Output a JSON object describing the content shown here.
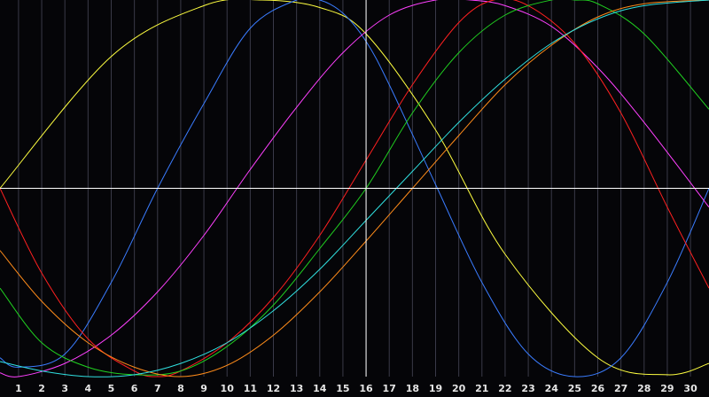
{
  "chart_data": {
    "type": "line",
    "x_ticks": [
      "1",
      "2",
      "3",
      "4",
      "5",
      "6",
      "7",
      "8",
      "9",
      "10",
      "11",
      "12",
      "13",
      "14",
      "15",
      "16",
      "17",
      "18",
      "19",
      "20",
      "21",
      "22",
      "23",
      "24",
      "25",
      "26",
      "27",
      "28",
      "29",
      "30"
    ],
    "xlim": [
      0.2,
      30.8
    ],
    "ylim": [
      -1,
      1
    ],
    "grid": "vertical",
    "crosshair": {
      "x": 16,
      "y": 0
    },
    "colors": {
      "background": "#050508",
      "grid": "#3a3a48",
      "crosshair": "#ffffff",
      "tick_text": "#e6e6e6"
    },
    "series": [
      {
        "color": "#ffff40",
        "x": [
          0.2,
          5,
          9,
          11.5,
          14,
          16,
          19,
          22,
          26,
          29,
          30.8
        ],
        "y": [
          0.0,
          0.7,
          0.97,
          1.0,
          0.96,
          0.82,
          0.31,
          -0.35,
          -0.9,
          -0.99,
          -0.93
        ]
      },
      {
        "color": "#3a7cff",
        "x": [
          0.2,
          1,
          3,
          5,
          7,
          9,
          11,
          13,
          14,
          15,
          16,
          17,
          19,
          21,
          23,
          25,
          27,
          29,
          30.8
        ],
        "y": [
          -0.9,
          -0.95,
          -0.88,
          -0.5,
          0.0,
          0.45,
          0.85,
          1.0,
          1.0,
          0.93,
          0.78,
          0.55,
          0.02,
          -0.5,
          -0.88,
          -1.0,
          -0.9,
          -0.5,
          0.0
        ]
      },
      {
        "color": "#ff40ff",
        "x": [
          0.2,
          1,
          3,
          5,
          7,
          9,
          11,
          13,
          15,
          17,
          19,
          20.5,
          22,
          24,
          26,
          28,
          30.8
        ],
        "y": [
          -0.98,
          -1.0,
          -0.93,
          -0.78,
          -0.55,
          -0.25,
          0.1,
          0.43,
          0.72,
          0.92,
          1.0,
          1.0,
          0.97,
          0.86,
          0.64,
          0.35,
          -0.1
        ]
      },
      {
        "color": "#ff2020",
        "x": [
          0.2,
          2,
          4,
          6,
          7,
          8,
          10,
          12,
          14,
          16,
          18,
          20,
          21.5,
          23,
          25,
          27,
          29,
          30.8
        ],
        "y": [
          0.0,
          -0.45,
          -0.8,
          -0.97,
          -1.0,
          -0.97,
          -0.82,
          -0.58,
          -0.25,
          0.15,
          0.55,
          0.88,
          1.0,
          0.97,
          0.77,
          0.4,
          -0.1,
          -0.53
        ]
      },
      {
        "color": "#20d020",
        "x": [
          0.2,
          2,
          4,
          6,
          8,
          10,
          12,
          14,
          16,
          18,
          20,
          22,
          24,
          25,
          26,
          28,
          30.8
        ],
        "y": [
          -0.53,
          -0.82,
          -0.95,
          -0.99,
          -0.97,
          -0.84,
          -0.62,
          -0.32,
          0.0,
          0.4,
          0.72,
          0.92,
          1.0,
          1.0,
          0.98,
          0.82,
          0.42
        ]
      },
      {
        "color": "#ff8c1a",
        "x": [
          0.2,
          2,
          4,
          6,
          8,
          10,
          12,
          14,
          16,
          18,
          20,
          22,
          24,
          26,
          28,
          30.8
        ],
        "y": [
          -0.33,
          -0.6,
          -0.82,
          -0.95,
          -1.0,
          -0.94,
          -0.78,
          -0.55,
          -0.28,
          0.0,
          0.28,
          0.55,
          0.76,
          0.91,
          0.98,
          1.0
        ]
      },
      {
        "color": "#30e0e0",
        "x": [
          0.2,
          2,
          4,
          6,
          8,
          10,
          12,
          14,
          16,
          18,
          20,
          22,
          24,
          26,
          28,
          30.8
        ],
        "y": [
          -0.92,
          -0.97,
          -1.0,
          -0.99,
          -0.93,
          -0.82,
          -0.65,
          -0.43,
          -0.17,
          0.09,
          0.35,
          0.58,
          0.77,
          0.9,
          0.97,
          1.0
        ]
      }
    ]
  }
}
